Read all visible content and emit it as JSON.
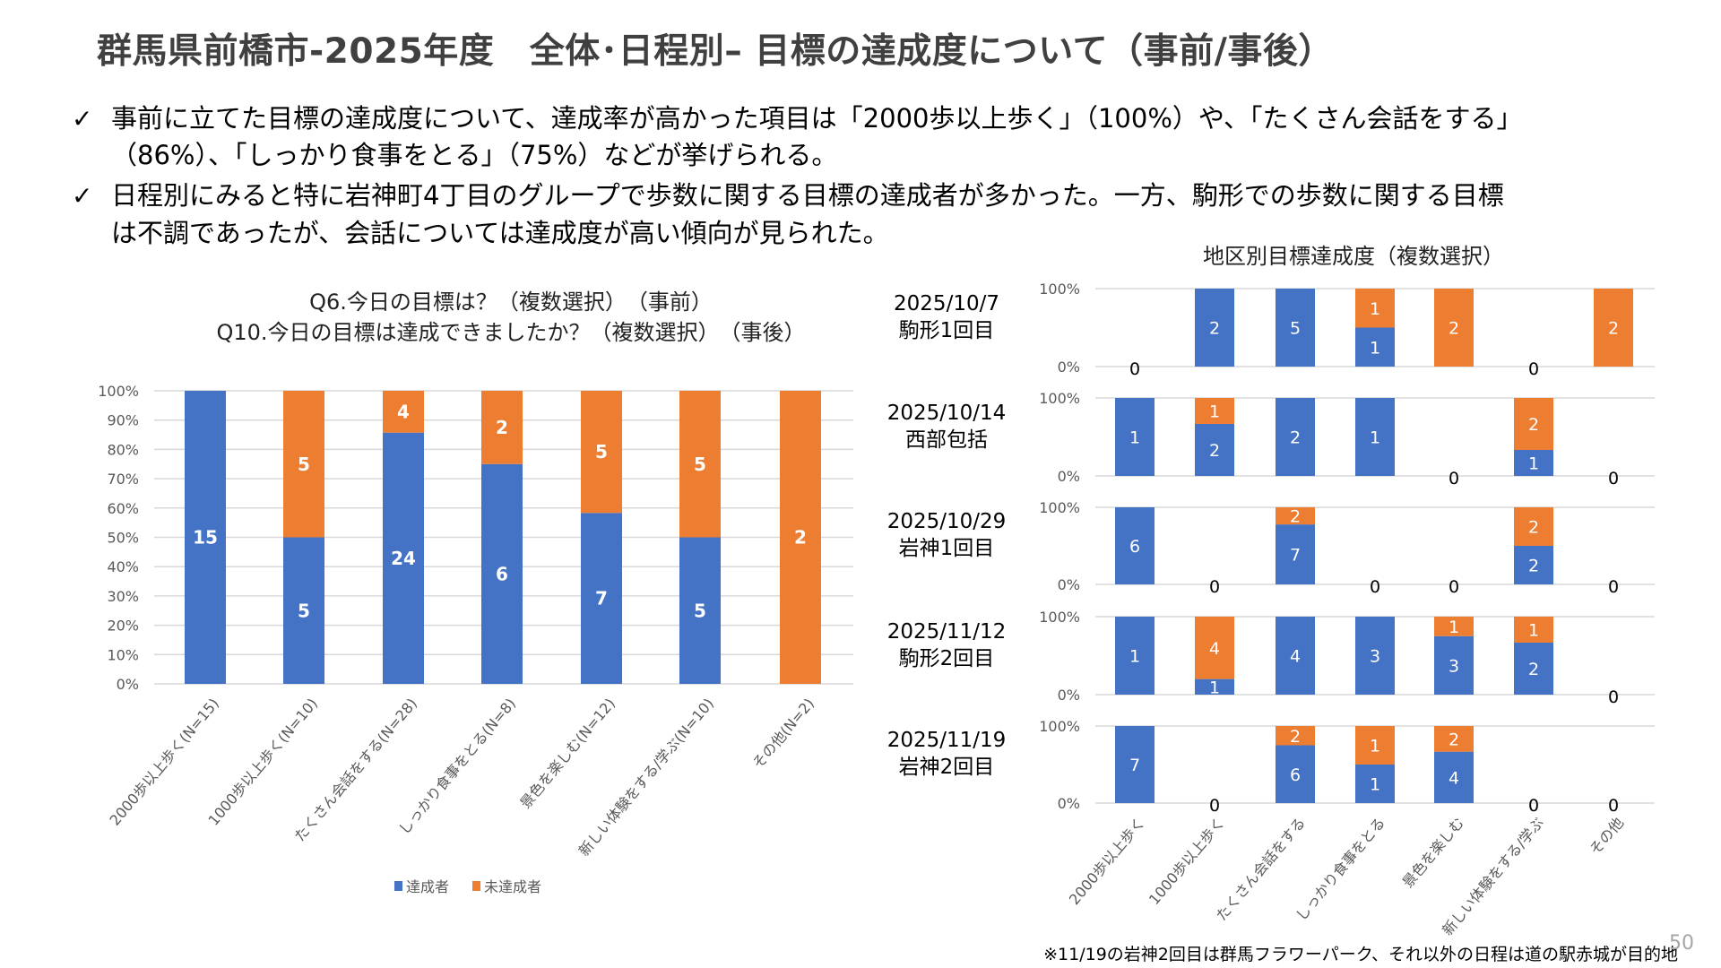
{
  "header": {
    "title": "群馬県前橋市-2025年度　全体･日程別– 目標の達成度について（事前/事後）"
  },
  "bullets": [
    {
      "icon": "checkmark-icon",
      "lines": [
        "事前に立てた目標の達成度について、達成率が高かった項目は「2000歩以上歩く」（100%）や、「たくさん会話をする」",
        "（86%）、「しっかり食事をとる」（75%）などが挙げられる。"
      ]
    },
    {
      "icon": "checkmark-icon",
      "lines": [
        "日程別にみると特に岩神町4丁目のグループで歩数に関する目標の達成者が多かった。一方、駒形での歩数に関する目標",
        "は不調であったが、会話については達成度が高い傾向が見られた。"
      ]
    }
  ],
  "colors": {
    "achieved": "#4472C4",
    "not_achieved": "#ED7D31",
    "grid": "#D9D9D9",
    "axis_text": "#595959"
  },
  "chart_data": [
    {
      "type": "bar",
      "stacked": "percent",
      "title": [
        "Q6.今日の目標は？（複数選択）　（事前）",
        "Q10.今日の目標は達成できましたか？（複数選択）　（事後）"
      ],
      "categories": [
        "2000歩以上歩く(N=15)",
        "1000歩以上歩く(N=10)",
        "たくさん会話をする(N=28)",
        "しっかり食事をとる(N=8)",
        "景色を楽しむ(N=12)",
        "新しい体験をする/学ぶ(N=10)",
        "その他(N=2)"
      ],
      "series": [
        {
          "name": "達成者",
          "values": [
            15,
            5,
            24,
            6,
            7,
            5,
            0
          ]
        },
        {
          "name": "未達成者",
          "values": [
            0,
            5,
            4,
            2,
            5,
            5,
            2
          ]
        }
      ],
      "yticks": [
        "0%",
        "10%",
        "20%",
        "30%",
        "40%",
        "50%",
        "60%",
        "70%",
        "80%",
        "90%",
        "100%"
      ],
      "ylim": [
        0,
        100
      ],
      "grid": true,
      "legend": "bottom"
    },
    {
      "type": "bar",
      "stacked": "percent",
      "title": "地区別目標達成度（複数選択）",
      "categories": [
        "2000歩以上歩く",
        "1000歩以上歩く",
        "たくさん会話をする",
        "しっかり食事をとる",
        "景色を楽しむ",
        "新しい体験をする/学ぶ",
        "その他"
      ],
      "yticks": [
        "0%",
        "100%"
      ],
      "ylim": [
        0,
        100
      ],
      "grid": true,
      "panels": [
        {
          "date": "2025/10/7",
          "group": "駒形1回目",
          "series": [
            {
              "name": "達成者",
              "values": [
                0,
                2,
                5,
                1,
                0,
                0,
                0
              ]
            },
            {
              "name": "未達成者",
              "values": [
                0,
                0,
                0,
                1,
                2,
                0,
                2
              ]
            }
          ]
        },
        {
          "date": "2025/10/14",
          "group": "西部包括",
          "series": [
            {
              "name": "達成者",
              "values": [
                1,
                2,
                2,
                1,
                0,
                1,
                0
              ]
            },
            {
              "name": "未達成者",
              "values": [
                0,
                1,
                0,
                0,
                0,
                2,
                0
              ]
            }
          ]
        },
        {
          "date": "2025/10/29",
          "group": "岩神1回目",
          "series": [
            {
              "name": "達成者",
              "values": [
                6,
                0,
                7,
                0,
                0,
                2,
                0
              ]
            },
            {
              "name": "未達成者",
              "values": [
                0,
                0,
                2,
                0,
                0,
                2,
                0
              ]
            }
          ]
        },
        {
          "date": "2025/11/12",
          "group": "駒形2回目",
          "series": [
            {
              "name": "達成者",
              "values": [
                1,
                1,
                4,
                3,
                3,
                2,
                0
              ]
            },
            {
              "name": "未達成者",
              "values": [
                0,
                4,
                0,
                0,
                1,
                1,
                0
              ]
            }
          ]
        },
        {
          "date": "2025/11/19",
          "group": "岩神2回目",
          "series": [
            {
              "name": "達成者",
              "values": [
                7,
                0,
                6,
                1,
                4,
                0,
                0
              ]
            },
            {
              "name": "未達成者",
              "values": [
                0,
                0,
                2,
                1,
                2,
                0,
                0
              ]
            }
          ]
        }
      ]
    }
  ],
  "legend": [
    "達成者",
    "未達成者"
  ],
  "footnote": "※11/19の岩神2回目は群馬フラワーパーク、それ以外の日程は道の駅赤城が目的地",
  "page_number": "50"
}
